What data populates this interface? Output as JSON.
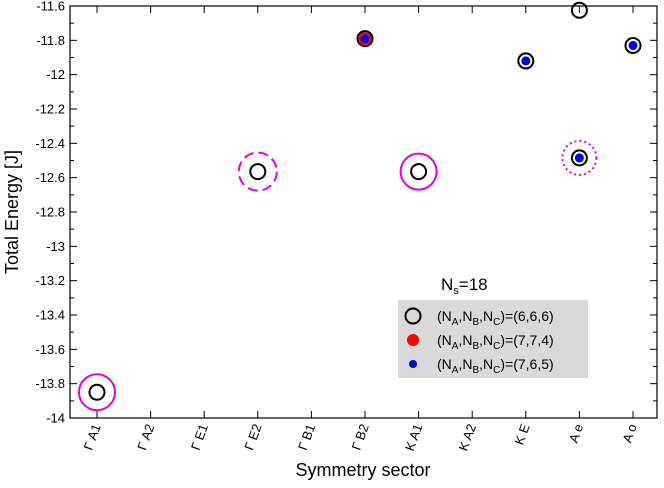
{
  "chart_data": {
    "type": "scatter",
    "xlabel": "Symmetry sector",
    "ylabel": "Total Energy [J]",
    "categories": [
      "Γ A1",
      "Γ A2",
      "Γ E1",
      "Γ E2",
      "Γ B1",
      "Γ B2",
      "K A1",
      "K A2",
      "K E",
      "A e",
      "A o"
    ],
    "ylim": [
      -14.0,
      -11.6
    ],
    "yticks": [
      -11.6,
      -11.8,
      -12,
      -12.2,
      -12.4,
      -12.6,
      -12.8,
      -13,
      -13.2,
      -13.4,
      -13.6,
      -13.8,
      -14
    ],
    "ytick_labels": [
      "-11.6",
      "-11.8",
      "-12",
      "-12.2",
      "-12.4",
      "-12.6",
      "-12.8",
      "-13",
      "-13.2",
      "-13.4",
      "-13.6",
      "-13.8",
      "-14"
    ],
    "legend": {
      "title": "N",
      "title_sub": "s",
      "title_tail": "=18",
      "position": "lower-right",
      "entries": [
        {
          "prefix": "(N",
          "a": "A",
          "mid1": ",N",
          "b": "B",
          "mid2": ",N",
          "c": "C",
          "tail": ")=(6,6,6)",
          "marker": "open-black"
        },
        {
          "prefix": "(N",
          "a": "A",
          "mid1": ",N",
          "b": "B",
          "mid2": ",N",
          "c": "C",
          "tail": ")=(7,7,4)",
          "marker": "red"
        },
        {
          "prefix": "(N",
          "a": "A",
          "mid1": ",N",
          "b": "B",
          "mid2": ",N",
          "c": "C",
          "tail": ")=(7,6,5)",
          "marker": "blue"
        }
      ]
    },
    "series": [
      {
        "marker": "open-black",
        "points": [
          {
            "x": "Γ A1",
            "y": -13.85
          },
          {
            "x": "Γ E2",
            "y": -12.565
          },
          {
            "x": "Γ B2",
            "y": -11.79
          },
          {
            "x": "K A1",
            "y": -12.565
          },
          {
            "x": "K E",
            "y": -11.92
          },
          {
            "x": "A e",
            "y": -11.625
          },
          {
            "x": "A e",
            "y": -12.485
          },
          {
            "x": "A o",
            "y": -11.83
          }
        ]
      },
      {
        "marker": "red",
        "points": [
          {
            "x": "Γ B2",
            "y": -11.79
          }
        ]
      },
      {
        "marker": "blue",
        "points": [
          {
            "x": "Γ B2",
            "y": -11.79
          },
          {
            "x": "K E",
            "y": -11.92
          },
          {
            "x": "A e",
            "y": -12.485
          },
          {
            "x": "A o",
            "y": -11.83
          }
        ]
      }
    ],
    "degeneracy_rings": [
      {
        "x": "Γ A1",
        "y": -13.85,
        "style": "solid"
      },
      {
        "x": "Γ E2",
        "y": -12.565,
        "style": "dashed"
      },
      {
        "x": "K A1",
        "y": -12.565,
        "style": "solid"
      },
      {
        "x": "A e",
        "y": -12.485,
        "style": "dotted"
      }
    ],
    "grid": false,
    "colors": {
      "ring": "#e000e0",
      "red": "#ff0000",
      "blue": "#0000ee",
      "legend_bg": "#d9d9d9"
    }
  }
}
